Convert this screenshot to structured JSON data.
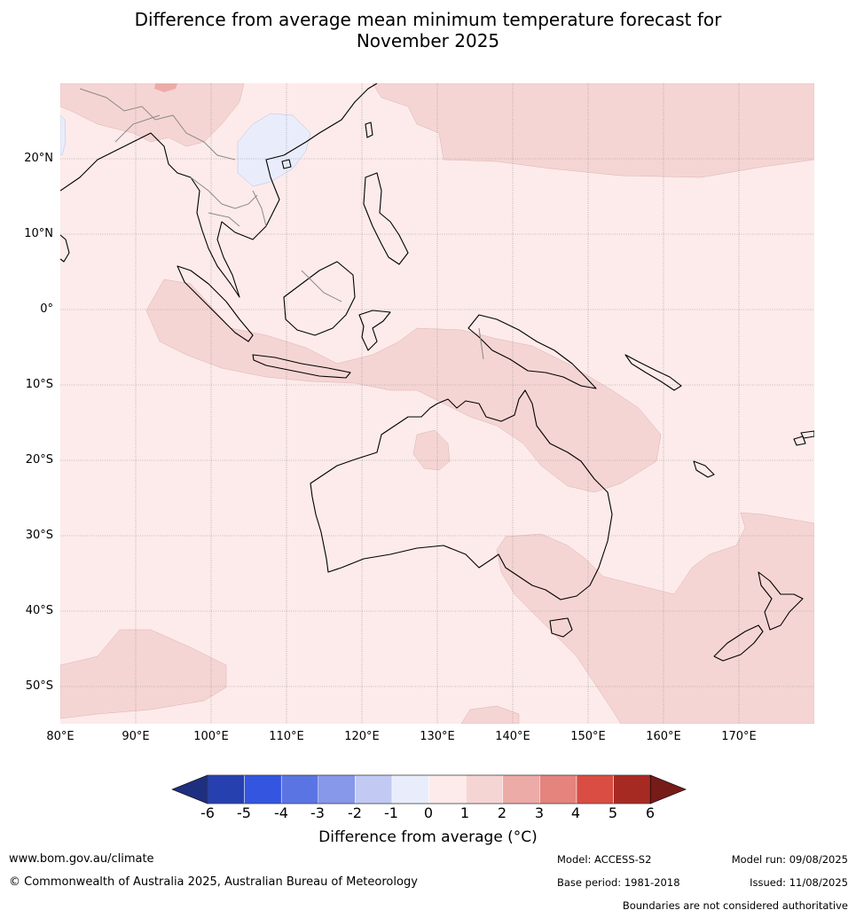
{
  "title_line1": "Difference from average mean minimum temperature forecast for",
  "title_line2": "November 2025",
  "lat_labels": [
    "20°N",
    "10°N",
    "0°",
    "10°S",
    "20°S",
    "30°S",
    "40°S",
    "50°S"
  ],
  "lon_labels": [
    "80°E",
    "90°E",
    "100°E",
    "110°E",
    "120°E",
    "130°E",
    "140°E",
    "150°E",
    "160°E",
    "170°E"
  ],
  "colorbar": {
    "ticks": [
      "-6",
      "-5",
      "-4",
      "-3",
      "-2",
      "-1",
      "0",
      "1",
      "2",
      "3",
      "4",
      "5",
      "6"
    ],
    "colors": [
      "#1f2f80",
      "#2640b0",
      "#3355e0",
      "#5a75e3",
      "#8797ea",
      "#c2c9f3",
      "#e9edfb",
      "#fcebea",
      "#f5d5d4",
      "#ecaba7",
      "#e5837d",
      "#d94d42",
      "#a62a22",
      "#761b17"
    ],
    "title": "Difference from average (°C)"
  },
  "field_colors": {
    "base": "#fcebea",
    "warm": "#f5d5d4",
    "warmer": "#ecaba7",
    "cool": "#e9edfb"
  },
  "footer": {
    "website": "www.bom.gov.au/climate",
    "copyright": "© Commonwealth of Australia 2025, Australian Bureau of Meteorology",
    "model": "Model: ACCESS-S2",
    "base_period": "Base period: 1981-2018",
    "model_run": "Model run: 09/08/2025",
    "issued": "Issued: 11/08/2025",
    "boundaries": "Boundaries are not considered authoritative"
  }
}
